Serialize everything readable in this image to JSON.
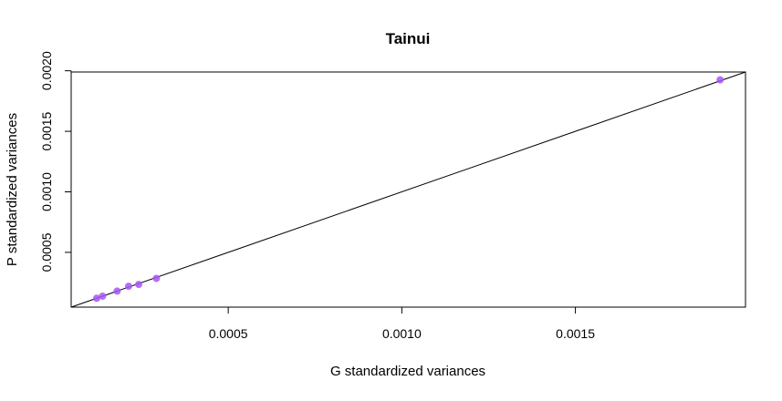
{
  "chart_data": {
    "type": "scatter",
    "title": "Tainui",
    "xlabel": "G standardized variances",
    "ylabel": "P standardized variances",
    "xlim": [
      4.75e-05,
      0.00199
    ],
    "ylim": [
      4.75e-05,
      0.00199
    ],
    "x_ticks": [
      {
        "value": 0.0005,
        "label": "0.0005"
      },
      {
        "value": 0.001,
        "label": "0.0010"
      },
      {
        "value": 0.0015,
        "label": "0.0015"
      }
    ],
    "y_ticks": [
      {
        "value": 0.0005,
        "label": "0.0005"
      },
      {
        "value": 0.001,
        "label": "0.0010"
      },
      {
        "value": 0.0015,
        "label": "0.0015"
      },
      {
        "value": 0.002,
        "label": "0.0020"
      }
    ],
    "reference_line": {
      "type": "identity",
      "intercept": 0,
      "slope": 1
    },
    "grid": false,
    "legend": false,
    "point_color": "#A855F7",
    "points": [
      {
        "x": 0.000121,
        "y": 0.000121
      },
      {
        "x": 0.000138,
        "y": 0.000138
      },
      {
        "x": 0.00018,
        "y": 0.00018
      },
      {
        "x": 0.000213,
        "y": 0.00022
      },
      {
        "x": 0.000242,
        "y": 0.000235
      },
      {
        "x": 0.000293,
        "y": 0.000285
      },
      {
        "x": 0.001917,
        "y": 0.001925
      }
    ]
  }
}
